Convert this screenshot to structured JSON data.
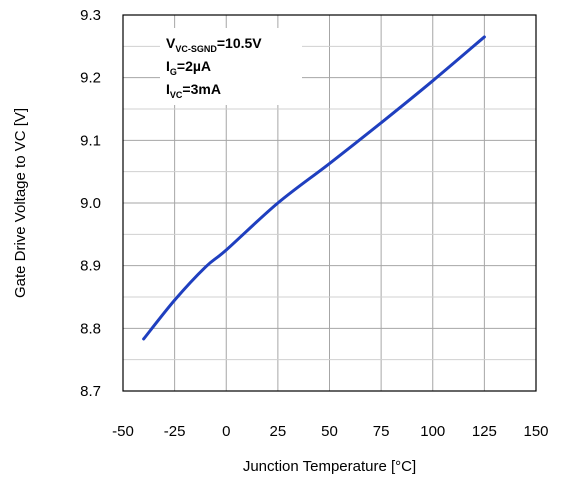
{
  "chart_data": {
    "type": "line",
    "title": "",
    "xlabel": "Junction Temperature [°C]",
    "ylabel": "Gate Drive Voltage to VC [V]",
    "xlim": [
      -50,
      150
    ],
    "ylim": [
      8.7,
      9.3
    ],
    "xticks": [
      "-50",
      "-25",
      "0",
      "25",
      "50",
      "75",
      "100",
      "125",
      "150"
    ],
    "yticks": [
      "8.7",
      "8.8",
      "8.9",
      "9.0",
      "9.1",
      "9.2",
      "9.3"
    ],
    "grid": true,
    "series": [
      {
        "color": "#1f3fbf",
        "x": [
          -40,
          -25,
          -10,
          0,
          25,
          50,
          75,
          100,
          125
        ],
        "y": [
          8.783,
          8.845,
          8.898,
          8.925,
          9.0,
          9.063,
          9.128,
          9.195,
          9.265
        ]
      }
    ],
    "annotations": [
      {
        "main": "V",
        "sub": "VC-SGND",
        "rest": "=10.5V"
      },
      {
        "main": "I",
        "sub": "G",
        "rest": "=2µA"
      },
      {
        "main": "I",
        "sub": "VC",
        "rest": "=3mA"
      }
    ]
  }
}
